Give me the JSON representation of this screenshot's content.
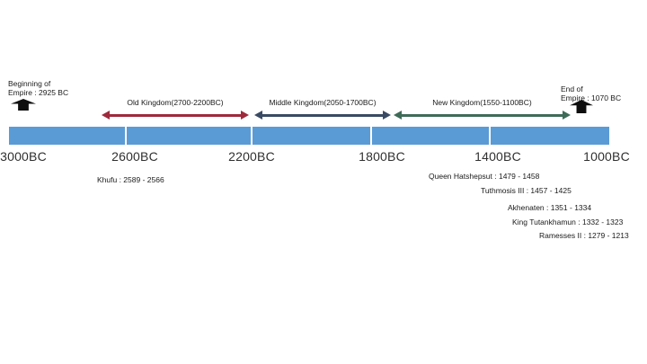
{
  "timeline": {
    "bar_color": "#5b9bd5",
    "ticks": [
      "3000BC",
      "2600BC",
      "2200BC",
      "1800BC",
      "1400BC",
      "1000BC"
    ]
  },
  "markers": {
    "beginning": {
      "line1": "Beginning of",
      "line2": "Empire : 2925 BC"
    },
    "end": {
      "line1": "End of",
      "line2": "Empire : 1070 BC"
    },
    "arrow_color": "#0e0e0e"
  },
  "kingdoms": [
    {
      "label": "Old Kingdom(2700-2200BC)",
      "color": "#9e2a3c"
    },
    {
      "label": "Middle Kingdom(2050-1700BC)",
      "color": "#3a4a63"
    },
    {
      "label": "New Kingdom(1550-1100BC)",
      "color": "#3e6b58"
    }
  ],
  "pharaohs": [
    {
      "label": "Khufu : 2589 - 2566"
    },
    {
      "label": "Queen Hatshepsut : 1479 - 1458"
    },
    {
      "label": "Tuthmosis III : 1457 - 1425"
    },
    {
      "label": "Akhenaten  : 1351 - 1334"
    },
    {
      "label": "King Tutankhamun : 1332 - 1323"
    },
    {
      "label": "Ramesses II : 1279 - 1213"
    }
  ]
}
